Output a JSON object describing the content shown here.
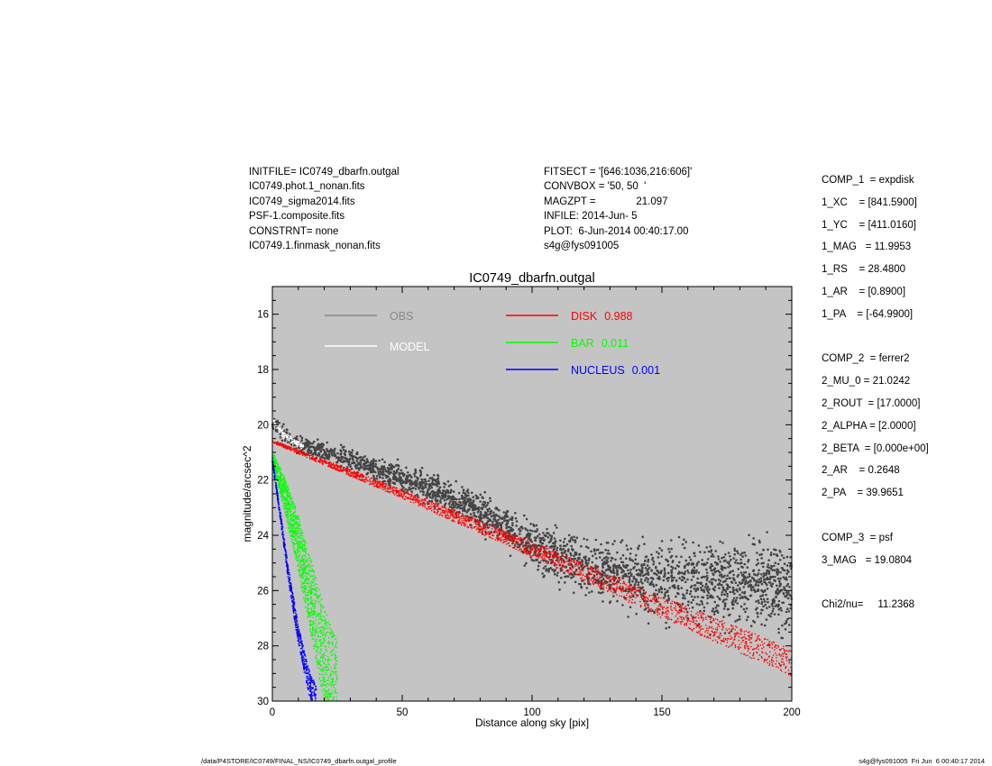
{
  "header_left": [
    "INITFILE= IC0749_dbarfn.outgal",
    "IC0749.phot.1_nonan.fits",
    "IC0749_sigma2014.fits",
    "PSF-1.composite.fits",
    "CONSTRNT= none",
    "IC0749.1.finmask_nonan.fits"
  ],
  "header_mid": [
    "FITSECT = '[646:1036,216:606]'",
    "CONVBOX = '50, 50  '",
    "MAGZPT =              21.097",
    "INFILE: 2014-Jun- 5",
    "PLOT:  6-Jun-2014 00:40:17.00",
    "s4g@fys091005"
  ],
  "header_right": [
    "COMP_1  = expdisk",
    "1_XC    = [841.5900]",
    "1_YC    = [411.0160]",
    "1_MAG   = 11.9953",
    "1_RS    = 28.4800",
    "1_AR    = [0.8900]",
    "1_PA    = [-64.9900]",
    "",
    "COMP_2  = ferrer2",
    "2_MU_0 = 21.0242",
    "2_ROUT  = [17.0000]",
    "2_ALPHA = [2.0000]",
    "2_BETA  = [0.000e+00]",
    "2_AR    = 0.2648",
    "2_PA    = 39.9651",
    "",
    "COMP_3  = psf",
    "3_MAG   = 19.0804",
    "",
    "Chi2/nu=     11.2368"
  ],
  "footer_left": "/data/P4STORE/IC0749/FINAL_NS/IC0749_dbarfn.outgal_profile",
  "footer_right": "s4g@fys091005  Fri Jun  6 00:40:17 2014",
  "chart_data": {
    "type": "scatter",
    "title": "IC0749_dbarfn.outgal",
    "xlabel": "Distance along sky [pix]",
    "ylabel": "magnitude/arcsec^2",
    "xlim": [
      0,
      200
    ],
    "ylim": [
      30,
      15
    ],
    "y_inverted": true,
    "x_ticks": [
      0,
      50,
      100,
      150,
      200
    ],
    "y_ticks": [
      16,
      18,
      20,
      22,
      24,
      26,
      28,
      30
    ],
    "grid": false,
    "legend": [
      {
        "label": "OBS",
        "value": "",
        "color": "#888888"
      },
      {
        "label": "MODEL",
        "value": "",
        "color": "#ffffff"
      },
      {
        "label": "DISK",
        "value": "0.988",
        "color": "#ff0000"
      },
      {
        "label": "BAR",
        "value": "0.011",
        "color": "#00ff00"
      },
      {
        "label": "NUCLEUS",
        "value": "0.001",
        "color": "#0000ff"
      }
    ],
    "series": [
      {
        "name": "OBS",
        "color": "#444444",
        "x": [
          0,
          10,
          25,
          50,
          75,
          100,
          125,
          150,
          175,
          200
        ],
        "y": [
          20.0,
          20.7,
          21.1,
          21.9,
          22.9,
          24.3,
          25.3,
          25.6,
          25.8,
          25.9
        ]
      },
      {
        "name": "MODEL",
        "color": "#ffffff",
        "x": [
          0,
          2,
          5,
          8,
          12
        ],
        "y": [
          19.8,
          20.1,
          20.4,
          20.6,
          20.8
        ]
      },
      {
        "name": "DISK",
        "color": "#ff0000",
        "x": [
          0,
          50,
          100,
          150,
          200
        ],
        "y": [
          20.6,
          22.5,
          24.5,
          26.6,
          28.6
        ]
      },
      {
        "name": "BAR",
        "color": "#00ff00",
        "x": [
          0,
          5,
          10,
          15,
          20,
          25
        ],
        "y": [
          21.2,
          22.6,
          24.3,
          26.3,
          28.4,
          30.0
        ]
      },
      {
        "name": "NUCLEUS",
        "color": "#0000ff",
        "x": [
          0,
          3,
          6,
          10,
          14,
          17
        ],
        "y": [
          21.3,
          23.2,
          25.3,
          27.6,
          29.3,
          30.0
        ]
      }
    ]
  }
}
